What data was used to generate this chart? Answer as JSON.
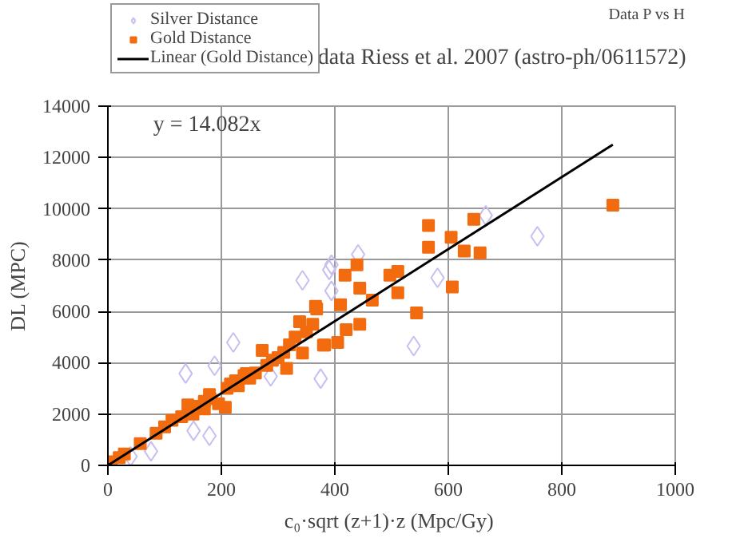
{
  "chart_data": {
    "type": "scatter",
    "title": "data Riess et al. 2007 (astro-ph/0611572)",
    "subtitle": "Data P vs H",
    "xlabel": "c₀·sqrt (z+1)·z  (Mpc/Gy)",
    "ylabel": "DL (MPC)",
    "annotations": [
      "y = 14.082x"
    ],
    "xlim": [
      0,
      1000
    ],
    "xticks": [
      0,
      200,
      400,
      600,
      800,
      1000
    ],
    "ylim": [
      0,
      14000
    ],
    "yticks": [
      0,
      2000,
      4000,
      6000,
      8000,
      10000,
      12000,
      14000
    ],
    "grid": true,
    "legend": "top left",
    "series": [
      {
        "name": "Silver Distance",
        "marker": "diamond",
        "color": "#c8bef0",
        "x": [
          343,
          394,
          441,
          394,
          375,
          287,
          221,
          188,
          137,
          179,
          151,
          76,
          40,
          757,
          581,
          539,
          390,
          666
        ],
        "values": [
          7210,
          7820,
          8220,
          6800,
          3380,
          3470,
          4790,
          3880,
          3580,
          1150,
          1350,
          550,
          350,
          8930,
          7310,
          4650,
          7620,
          9740
        ]
      },
      {
        "name": "Gold Distance",
        "marker": "square",
        "color": "#f26b0f",
        "x": [
          890,
          645,
          565,
          565,
          605,
          628,
          656,
          607,
          544,
          511,
          497,
          511,
          466,
          439,
          418,
          444,
          444,
          410,
          382,
          405,
          420,
          366,
          361,
          368,
          338,
          380,
          343,
          315,
          272,
          244,
          216,
          207,
          179,
          141,
          113,
          85,
          57,
          29,
          6,
          20,
          160,
          170,
          180,
          210,
          230,
          250,
          260,
          280,
          300,
          320,
          330,
          350,
          150,
          130,
          100,
          225,
          240,
          290,
          310,
          170,
          195
        ],
        "values": [
          10140,
          9590,
          9350,
          8500,
          8890,
          8350,
          8280,
          6950,
          5940,
          7560,
          7410,
          6730,
          6440,
          7820,
          7410,
          6910,
          5500,
          6260,
          4690,
          4790,
          5290,
          6200,
          5500,
          6100,
          5600,
          4690,
          4380,
          3780,
          4480,
          3580,
          3170,
          2260,
          2760,
          2360,
          1760,
          1250,
          850,
          440,
          140,
          300,
          2300,
          2500,
          2600,
          3000,
          3100,
          3400,
          3600,
          3900,
          4200,
          4700,
          5000,
          5200,
          2000,
          1900,
          1500,
          3300,
          3500,
          4100,
          4400,
          2200,
          2400
        ]
      },
      {
        "name": "Linear (Gold Distance)",
        "type": "line",
        "color": "#000000",
        "x": [
          0,
          890
        ],
        "values": [
          0,
          12500
        ]
      }
    ]
  }
}
